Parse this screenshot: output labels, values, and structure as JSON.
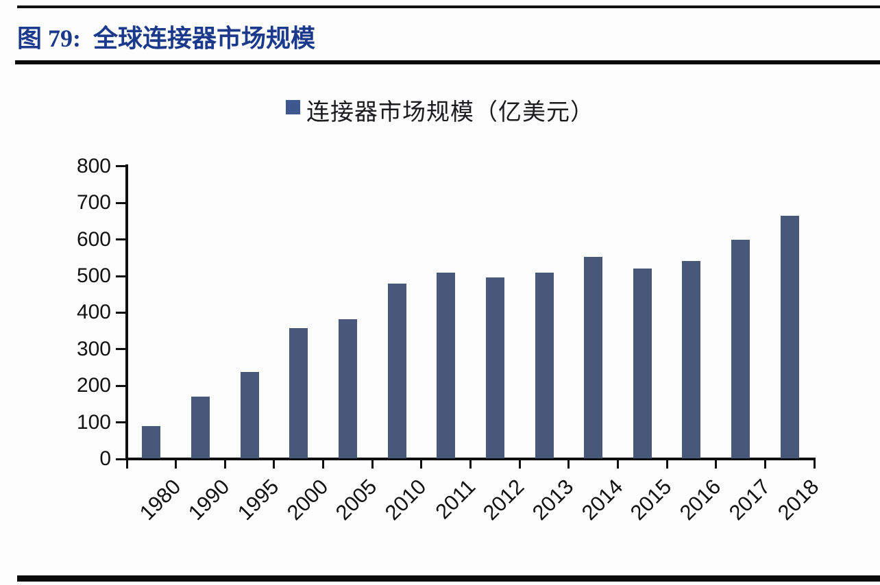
{
  "figure": {
    "title": "图 79:  全球连接器市场规模"
  },
  "chart_data": {
    "type": "bar",
    "title": "",
    "legend": "连接器市场规模（亿美元）",
    "legend_position": "top-center",
    "categories": [
      "1980",
      "1990",
      "1995",
      "2000",
      "2005",
      "2010",
      "2011",
      "2012",
      "2013",
      "2014",
      "2015",
      "2016",
      "2017",
      "2018"
    ],
    "values": [
      89,
      171,
      237,
      358,
      382,
      480,
      510,
      497,
      510,
      553,
      520,
      542,
      600,
      665
    ],
    "xlabel": "",
    "ylabel": "",
    "ylim": [
      0,
      800
    ],
    "yticks": [
      0,
      100,
      200,
      300,
      400,
      500,
      600,
      700,
      800
    ],
    "grid": false,
    "bar_color": "#48587a",
    "legend_marker_color": "#3e578e",
    "axis_color": "#0f0f0f",
    "title_color": "#1b3a8c"
  }
}
